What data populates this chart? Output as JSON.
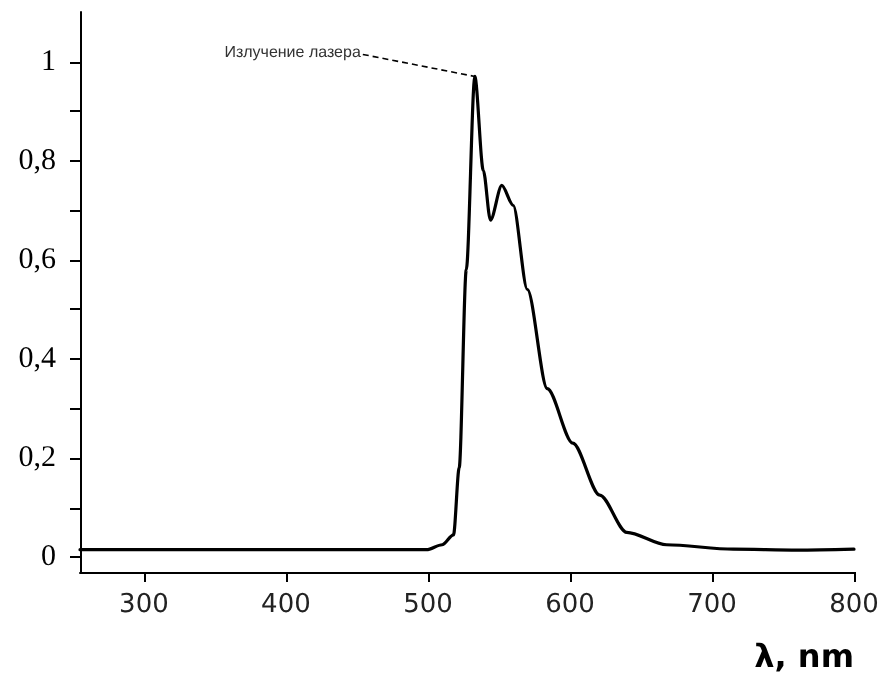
{
  "chart_data": {
    "type": "line",
    "xlabel": "λ, nm",
    "x": [
      255,
      350,
      450,
      499,
      510,
      518,
      522,
      527,
      533,
      539,
      544,
      552,
      560,
      570,
      584,
      602,
      621,
      640,
      668,
      715,
      760,
      800
    ],
    "series": [
      {
        "color": "#000000",
        "values": [
          0.015,
          0.015,
          0.015,
          0.015,
          0.025,
          0.045,
          0.18,
          0.58,
          0.97,
          0.78,
          0.68,
          0.75,
          0.71,
          0.54,
          0.34,
          0.23,
          0.125,
          0.05,
          0.025,
          0.016,
          0.014,
          0.016
        ]
      }
    ],
    "xlim": [
      255,
      800
    ],
    "xticks": [
      300,
      400,
      500,
      600,
      700,
      800
    ],
    "ylim": [
      -0.03,
      1.1
    ],
    "yticks": [
      0,
      {
        "value": 0.1,
        "label": null
      },
      {
        "value": 0.2,
        "label": "0,2"
      },
      {
        "value": 0.3,
        "label": null
      },
      {
        "value": 0.4,
        "label": "0,4"
      },
      {
        "value": 0.5,
        "label": null
      },
      {
        "value": 0.6,
        "label": "0,6"
      },
      {
        "value": 0.7,
        "label": null
      },
      {
        "value": 0.8,
        "label": "0,8"
      },
      {
        "value": 0.9,
        "label": null
      },
      1
    ],
    "annotations": [
      {
        "text": "Излучение лазера",
        "x": 533,
        "y": 0.97
      }
    ],
    "grid": false,
    "marker": "none",
    "line_style": "solid"
  }
}
